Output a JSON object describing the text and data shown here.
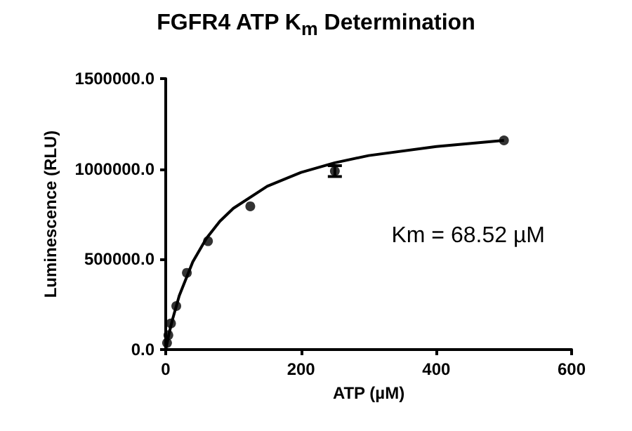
{
  "chart_data": {
    "type": "scatter",
    "title": "FGFR4 ATP K$_{m}$ Determination",
    "xlabel": "ATP (µM)",
    "ylabel": "Luminescence (RLU)",
    "xlim": [
      0,
      600
    ],
    "xticks": [
      0,
      200,
      400,
      600
    ],
    "ylim": [
      0,
      1500000
    ],
    "yticks": [
      {
        "value": 0,
        "label": "0.0"
      },
      {
        "value": 500000,
        "label": "500000.0"
      },
      {
        "value": 1000000,
        "label": "1000000.0"
      },
      {
        "value": 1500000,
        "label": "1500000.0"
      }
    ],
    "grid": false,
    "series": [
      {
        "color": "#000000",
        "marker": "circle",
        "x": [
          1.95,
          3.9,
          7.8,
          15.6,
          31.25,
          62.5,
          125,
          250,
          500
        ],
        "values": [
          37000,
          80000,
          145000,
          241000,
          425000,
          600000,
          793000,
          988000,
          1158000
        ],
        "errors": [
          null,
          null,
          null,
          null,
          null,
          null,
          null,
          30000,
          null
        ]
      },
      {
        "type": "line",
        "color": "#000000",
        "marker": "none",
        "line_style": "solid",
        "x": [
          0,
          5,
          10,
          20,
          40,
          60,
          80,
          100,
          150,
          200,
          250,
          300,
          400,
          500
        ],
        "values": [
          0,
          90000,
          166000,
          298000,
          486000,
          615000,
          710000,
          782000,
          904000,
          981000,
          1034000,
          1074000,
          1124000,
          1158000
        ]
      }
    ],
    "annotations": [
      "Km = 68.52 µM"
    ]
  }
}
